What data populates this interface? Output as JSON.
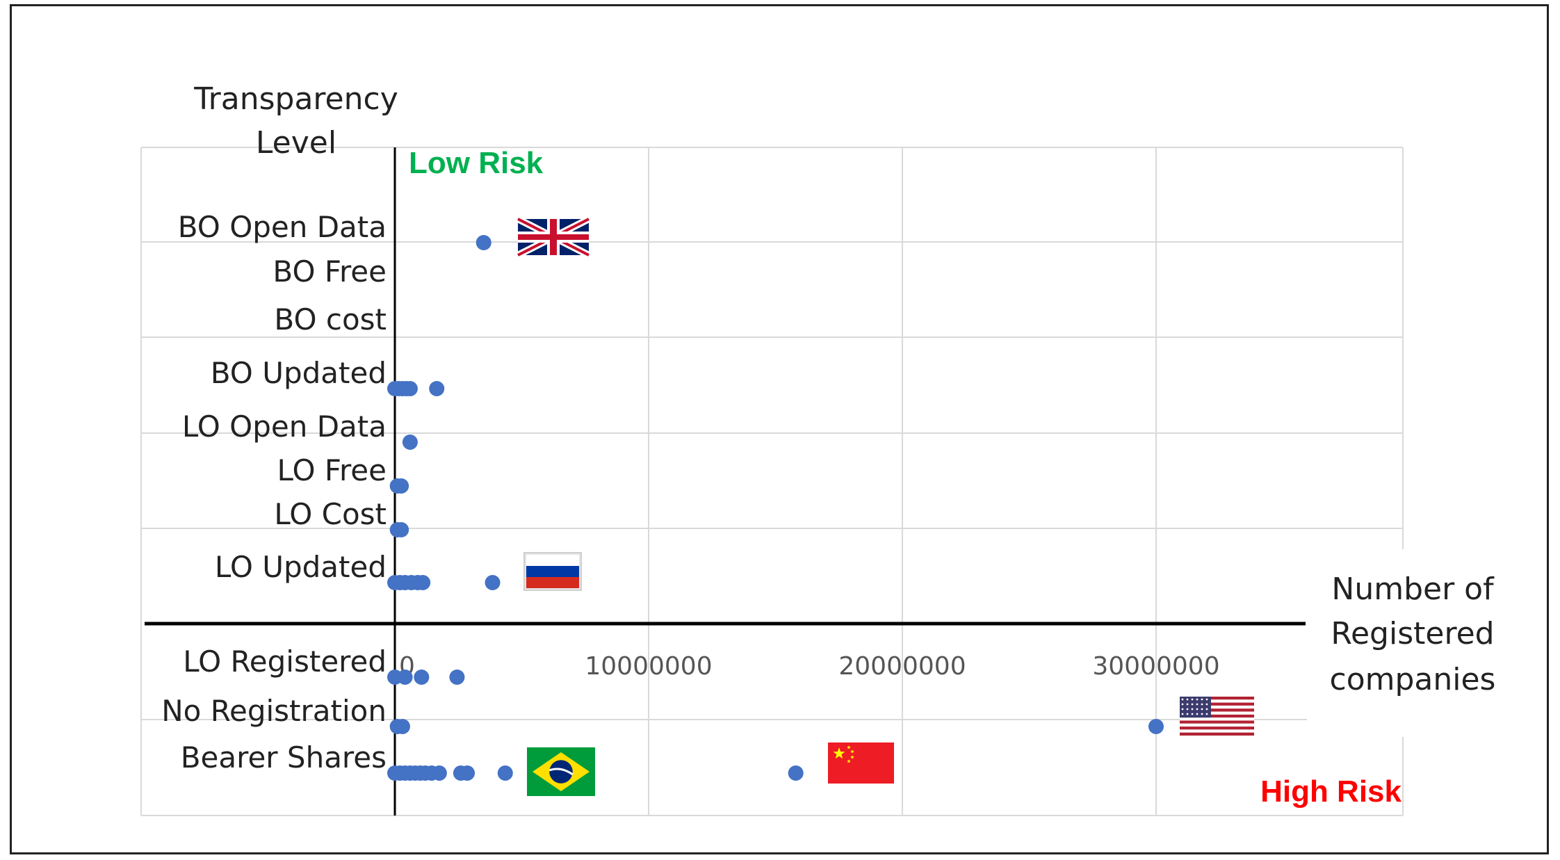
{
  "chart_data": {
    "type": "scatter",
    "title": "",
    "ylabel": "Transparency Level",
    "xlabel": "Number of Registered companies",
    "xlim": [
      0,
      40000000
    ],
    "x_ticks": [
      0,
      10000000,
      20000000,
      30000000
    ],
    "x_tick_labels": [
      "0",
      "10000000",
      "20000000",
      "30000000"
    ],
    "categories": [
      "BO Open Data",
      "BO Free",
      "BO cost",
      "BO Updated",
      "LO Open Data",
      "LO Free",
      "LO Cost",
      "LO Updated",
      "LO Registered",
      "No Registration",
      "Bearer Shares"
    ],
    "series": [
      {
        "points": [
          {
            "x": 3500000,
            "y": "BO Open Data"
          },
          {
            "x": 0,
            "y": "BO Updated"
          },
          {
            "x": 150000,
            "y": "BO Updated"
          },
          {
            "x": 300000,
            "y": "BO Updated"
          },
          {
            "x": 450000,
            "y": "BO Updated"
          },
          {
            "x": 600000,
            "y": "BO Updated"
          },
          {
            "x": 1650000,
            "y": "BO Updated"
          },
          {
            "x": 600000,
            "y": "LO Open Data"
          },
          {
            "x": 100000,
            "y": "LO Free"
          },
          {
            "x": 250000,
            "y": "LO Free"
          },
          {
            "x": 100000,
            "y": "LO Cost"
          },
          {
            "x": 250000,
            "y": "LO Cost"
          },
          {
            "x": 0,
            "y": "LO Updated"
          },
          {
            "x": 200000,
            "y": "LO Updated"
          },
          {
            "x": 400000,
            "y": "LO Updated"
          },
          {
            "x": 650000,
            "y": "LO Updated"
          },
          {
            "x": 900000,
            "y": "LO Updated"
          },
          {
            "x": 1100000,
            "y": "LO Updated"
          },
          {
            "x": 3850000,
            "y": "LO Updated"
          },
          {
            "x": 0,
            "y": "LO Registered"
          },
          {
            "x": 400000,
            "y": "LO Registered"
          },
          {
            "x": 1050000,
            "y": "LO Registered"
          },
          {
            "x": 2450000,
            "y": "LO Registered"
          },
          {
            "x": 100000,
            "y": "No Registration"
          },
          {
            "x": 300000,
            "y": "No Registration"
          },
          {
            "x": 30000000,
            "y": "No Registration"
          },
          {
            "x": 0,
            "y": "Bearer Shares"
          },
          {
            "x": 200000,
            "y": "Bearer Shares"
          },
          {
            "x": 400000,
            "y": "Bearer Shares"
          },
          {
            "x": 600000,
            "y": "Bearer Shares"
          },
          {
            "x": 800000,
            "y": "Bearer Shares"
          },
          {
            "x": 1000000,
            "y": "Bearer Shares"
          },
          {
            "x": 1200000,
            "y": "Bearer Shares"
          },
          {
            "x": 1450000,
            "y": "Bearer Shares"
          },
          {
            "x": 1750000,
            "y": "Bearer Shares"
          },
          {
            "x": 2600000,
            "y": "Bearer Shares"
          },
          {
            "x": 2850000,
            "y": "Bearer Shares"
          },
          {
            "x": 4350000,
            "y": "Bearer Shares"
          },
          {
            "x": 15800000,
            "y": "Bearer Shares"
          }
        ]
      }
    ],
    "annotations": {
      "low_risk": "Low Risk",
      "high_risk": "High Risk"
    },
    "flags": [
      {
        "icon": "uk-flag-icon",
        "near": "BO Open Data"
      },
      {
        "icon": "russia-flag-icon",
        "near": "LO Updated"
      },
      {
        "icon": "usa-flag-icon",
        "near": "No Registration"
      },
      {
        "icon": "brazil-flag-icon",
        "near": "Bearer Shares"
      },
      {
        "icon": "china-flag-icon",
        "near": "Bearer Shares"
      }
    ],
    "grid": true,
    "colors": {
      "point": "#4472C4",
      "low_risk": "#00B050",
      "high_risk": "#FF0000",
      "grid": "#D9D9D9",
      "axis": "#000000"
    }
  }
}
